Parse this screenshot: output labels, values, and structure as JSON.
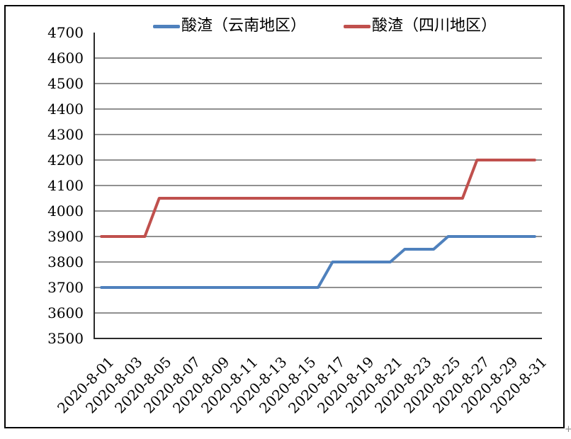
{
  "chart_data": {
    "type": "line",
    "x": [
      "2020-8-01",
      "2020-8-02",
      "2020-8-03",
      "2020-8-04",
      "2020-8-05",
      "2020-8-06",
      "2020-8-07",
      "2020-8-08",
      "2020-8-09",
      "2020-8-10",
      "2020-8-11",
      "2020-8-12",
      "2020-8-13",
      "2020-8-14",
      "2020-8-15",
      "2020-8-16",
      "2020-8-17",
      "2020-8-18",
      "2020-8-19",
      "2020-8-20",
      "2020-8-21",
      "2020-8-22",
      "2020-8-23",
      "2020-8-24",
      "2020-8-25",
      "2020-8-26",
      "2020-8-27",
      "2020-8-28",
      "2020-8-29",
      "2020-8-30",
      "2020-8-31"
    ],
    "x_label_every": 2,
    "series": [
      {
        "name": "酸渣（云南地区）",
        "color": "#4f81bd",
        "values": [
          3700,
          3700,
          3700,
          3700,
          3700,
          3700,
          3700,
          3700,
          3700,
          3700,
          3700,
          3700,
          3700,
          3700,
          3700,
          3700,
          3800,
          3800,
          3800,
          3800,
          3800,
          3850,
          3850,
          3850,
          3900,
          3900,
          3900,
          3900,
          3900,
          3900,
          3900
        ]
      },
      {
        "name": "酸渣（四川地区）",
        "color": "#c0504d",
        "values": [
          3900,
          3900,
          3900,
          3900,
          4050,
          4050,
          4050,
          4050,
          4050,
          4050,
          4050,
          4050,
          4050,
          4050,
          4050,
          4050,
          4050,
          4050,
          4050,
          4050,
          4050,
          4050,
          4050,
          4050,
          4050,
          4050,
          4200,
          4200,
          4200,
          4200,
          4200
        ]
      }
    ],
    "title": "",
    "xlabel": "",
    "ylabel": "",
    "ylim": [
      3500,
      4700
    ],
    "ytick_step": 100,
    "grid": true,
    "legend_position": "top"
  },
  "colors": {
    "gridline": "#808080",
    "axis": "#2b2b2b",
    "border": "#000000",
    "background": "#ffffff"
  },
  "artifacts": {
    "corner_mark": "+"
  }
}
